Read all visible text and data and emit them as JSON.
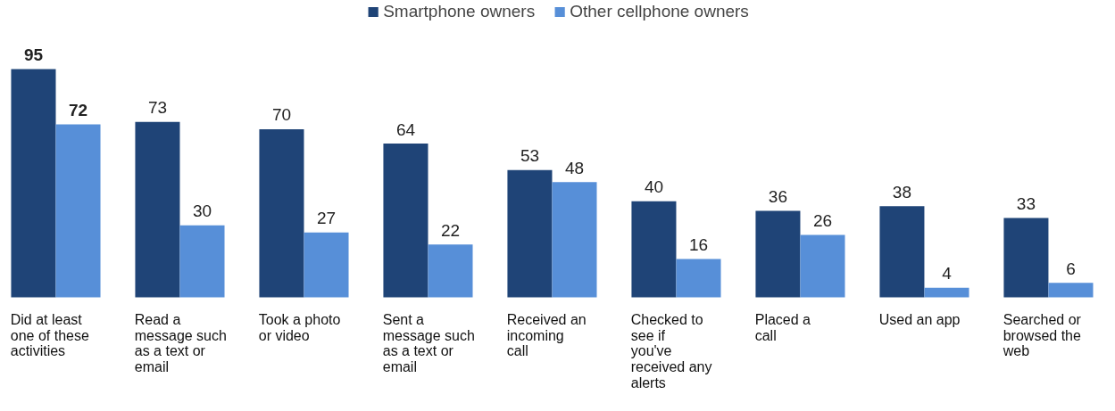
{
  "chart_data": {
    "type": "bar",
    "categories": [
      "Did at least one of these activities",
      "Read a message such as a text or email",
      "Took a photo or video",
      "Sent a message such as a text or email",
      "Received an incoming call",
      "Checked to see if you've received any alerts",
      "Placed a call",
      "Used an app",
      "Searched or browsed the web"
    ],
    "series": [
      {
        "name": "Smartphone owners",
        "color": "#1f4477",
        "values": [
          95,
          73,
          70,
          64,
          53,
          40,
          36,
          38,
          33
        ]
      },
      {
        "name": "Other cellphone owners",
        "color": "#578fd8",
        "values": [
          72,
          30,
          27,
          22,
          48,
          16,
          26,
          4,
          6
        ]
      }
    ],
    "data_labels": true,
    "legend": "top",
    "grid": false
  }
}
